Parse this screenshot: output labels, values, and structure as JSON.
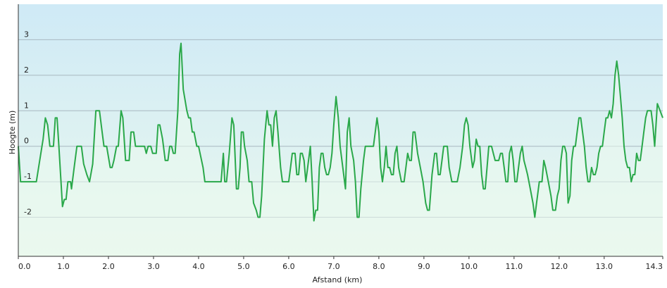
{
  "chart_data": {
    "type": "area",
    "title": "",
    "xlabel": "Afstand  (km)",
    "ylabel": "Hoogte (m)",
    "xlim": [
      0,
      14.3
    ],
    "ylim": [
      -3.1,
      4.0
    ],
    "grid": true,
    "legend": "none",
    "colors": {
      "line": "#2aa84a",
      "plot_top": "#cfeaf6",
      "plot_bottom": "#eaf8ee",
      "grid": "#a8b8c0",
      "axis": "#333333"
    },
    "x_ticks": [
      {
        "value": 0,
        "label": "0.0"
      },
      {
        "value": 1,
        "label": "1.0"
      },
      {
        "value": 2,
        "label": "2.0"
      },
      {
        "value": 3,
        "label": "3.0"
      },
      {
        "value": 4,
        "label": "4.0"
      },
      {
        "value": 5,
        "label": "5.0"
      },
      {
        "value": 6,
        "label": "6.0"
      },
      {
        "value": 7,
        "label": "7.0"
      },
      {
        "value": 8,
        "label": "8.0"
      },
      {
        "value": 9,
        "label": "9.0"
      },
      {
        "value": 10,
        "label": "10.0"
      },
      {
        "value": 11,
        "label": "11.0"
      },
      {
        "value": 12,
        "label": "12.0"
      },
      {
        "value": 13,
        "label": "13.0"
      },
      {
        "value": 14.3,
        "label": "14.3"
      }
    ],
    "y_ticks": [
      {
        "value": 3,
        "label": "3"
      },
      {
        "value": 2,
        "label": "2"
      },
      {
        "value": 1,
        "label": "1"
      },
      {
        "value": 0,
        "label": "0"
      },
      {
        "value": -1,
        "label": "-1"
      },
      {
        "value": -2,
        "label": "-2"
      }
    ],
    "series": [
      {
        "points": [
          [
            0.0,
            0.0
          ],
          [
            0.05,
            -1.0
          ],
          [
            0.4,
            -1.0
          ],
          [
            0.45,
            -0.6
          ],
          [
            0.55,
            0.2
          ],
          [
            0.6,
            0.8
          ],
          [
            0.65,
            0.6
          ],
          [
            0.7,
            0.0
          ],
          [
            0.78,
            0.0
          ],
          [
            0.82,
            0.8
          ],
          [
            0.86,
            0.8
          ],
          [
            0.9,
            0.0
          ],
          [
            0.98,
            -1.7
          ],
          [
            1.02,
            -1.5
          ],
          [
            1.06,
            -1.5
          ],
          [
            1.1,
            -1.0
          ],
          [
            1.16,
            -1.0
          ],
          [
            1.18,
            -1.2
          ],
          [
            1.24,
            -0.6
          ],
          [
            1.3,
            0.0
          ],
          [
            1.4,
            0.0
          ],
          [
            1.45,
            -0.5
          ],
          [
            1.52,
            -0.8
          ],
          [
            1.58,
            -1.0
          ],
          [
            1.65,
            -0.5
          ],
          [
            1.72,
            1.0
          ],
          [
            1.8,
            1.0
          ],
          [
            1.86,
            0.4
          ],
          [
            1.9,
            0.0
          ],
          [
            1.96,
            0.0
          ],
          [
            2.04,
            -0.6
          ],
          [
            2.08,
            -0.6
          ],
          [
            2.12,
            -0.4
          ],
          [
            2.18,
            0.0
          ],
          [
            2.22,
            0.0
          ],
          [
            2.28,
            1.0
          ],
          [
            2.32,
            0.8
          ],
          [
            2.38,
            -0.4
          ],
          [
            2.46,
            -0.4
          ],
          [
            2.5,
            0.4
          ],
          [
            2.56,
            0.4
          ],
          [
            2.6,
            0.0
          ],
          [
            2.7,
            0.0
          ],
          [
            2.8,
            0.0
          ],
          [
            2.84,
            -0.2
          ],
          [
            2.88,
            0.0
          ],
          [
            2.94,
            0.0
          ],
          [
            2.98,
            -0.2
          ],
          [
            3.06,
            -0.2
          ],
          [
            3.1,
            0.6
          ],
          [
            3.14,
            0.6
          ],
          [
            3.2,
            0.2
          ],
          [
            3.26,
            -0.4
          ],
          [
            3.32,
            -0.4
          ],
          [
            3.36,
            0.0
          ],
          [
            3.4,
            0.0
          ],
          [
            3.44,
            -0.2
          ],
          [
            3.48,
            -0.2
          ],
          [
            3.54,
            1.0
          ],
          [
            3.58,
            2.6
          ],
          [
            3.61,
            2.9
          ],
          [
            3.66,
            1.6
          ],
          [
            3.74,
            1.0
          ],
          [
            3.78,
            0.8
          ],
          [
            3.82,
            0.8
          ],
          [
            3.86,
            0.4
          ],
          [
            3.9,
            0.4
          ],
          [
            3.96,
            0.0
          ],
          [
            4.0,
            0.0
          ],
          [
            4.1,
            -0.6
          ],
          [
            4.14,
            -1.0
          ],
          [
            4.3,
            -1.0
          ],
          [
            4.5,
            -1.0
          ],
          [
            4.55,
            -0.2
          ],
          [
            4.58,
            -1.0
          ],
          [
            4.62,
            -1.0
          ],
          [
            4.68,
            -0.2
          ],
          [
            4.74,
            0.8
          ],
          [
            4.78,
            0.6
          ],
          [
            4.84,
            -1.2
          ],
          [
            4.88,
            -1.2
          ],
          [
            4.92,
            -0.6
          ],
          [
            4.95,
            0.4
          ],
          [
            4.99,
            0.4
          ],
          [
            5.02,
            0.0
          ],
          [
            5.08,
            -0.4
          ],
          [
            5.12,
            -1.0
          ],
          [
            5.18,
            -1.0
          ],
          [
            5.22,
            -1.6
          ],
          [
            5.28,
            -1.8
          ],
          [
            5.32,
            -2.0
          ],
          [
            5.36,
            -2.0
          ],
          [
            5.4,
            -1.4
          ],
          [
            5.46,
            0.2
          ],
          [
            5.52,
            1.0
          ],
          [
            5.56,
            0.6
          ],
          [
            5.6,
            0.6
          ],
          [
            5.64,
            0.0
          ],
          [
            5.68,
            0.8
          ],
          [
            5.72,
            1.0
          ],
          [
            5.76,
            0.4
          ],
          [
            5.82,
            -0.6
          ],
          [
            5.86,
            -1.0
          ],
          [
            6.0,
            -1.0
          ],
          [
            6.04,
            -0.6
          ],
          [
            6.08,
            -0.2
          ],
          [
            6.14,
            -0.2
          ],
          [
            6.18,
            -0.8
          ],
          [
            6.22,
            -0.8
          ],
          [
            6.26,
            -0.2
          ],
          [
            6.3,
            -0.2
          ],
          [
            6.34,
            -0.4
          ],
          [
            6.38,
            -1.0
          ],
          [
            6.42,
            -0.6
          ],
          [
            6.48,
            0.0
          ],
          [
            6.52,
            -1.0
          ],
          [
            6.56,
            -2.1
          ],
          [
            6.6,
            -1.8
          ],
          [
            6.64,
            -1.8
          ],
          [
            6.68,
            -0.6
          ],
          [
            6.72,
            -0.2
          ],
          [
            6.76,
            -0.2
          ],
          [
            6.8,
            -0.6
          ],
          [
            6.84,
            -0.8
          ],
          [
            6.88,
            -0.8
          ],
          [
            6.92,
            -0.6
          ],
          [
            6.96,
            -0.2
          ],
          [
            7.0,
            0.6
          ],
          [
            7.05,
            1.4
          ],
          [
            7.1,
            0.8
          ],
          [
            7.14,
            0.0
          ],
          [
            7.2,
            -0.6
          ],
          [
            7.26,
            -1.2
          ],
          [
            7.3,
            0.4
          ],
          [
            7.34,
            0.8
          ],
          [
            7.38,
            0.0
          ],
          [
            7.44,
            -0.4
          ],
          [
            7.48,
            -1.0
          ],
          [
            7.52,
            -2.0
          ],
          [
            7.56,
            -2.0
          ],
          [
            7.6,
            -1.2
          ],
          [
            7.66,
            -0.4
          ],
          [
            7.7,
            0.0
          ],
          [
            7.84,
            0.0
          ],
          [
            7.88,
            0.0
          ],
          [
            7.92,
            0.4
          ],
          [
            7.96,
            0.8
          ],
          [
            8.0,
            0.4
          ],
          [
            8.04,
            -0.6
          ],
          [
            8.08,
            -1.0
          ],
          [
            8.12,
            -0.6
          ],
          [
            8.16,
            0.0
          ],
          [
            8.2,
            -0.6
          ],
          [
            8.24,
            -0.6
          ],
          [
            8.28,
            -0.8
          ],
          [
            8.32,
            -0.8
          ],
          [
            8.36,
            -0.2
          ],
          [
            8.4,
            0.0
          ],
          [
            8.44,
            -0.6
          ],
          [
            8.5,
            -1.0
          ],
          [
            8.56,
            -1.0
          ],
          [
            8.6,
            -0.6
          ],
          [
            8.64,
            -0.2
          ],
          [
            8.68,
            -0.4
          ],
          [
            8.72,
            -0.4
          ],
          [
            8.76,
            0.4
          ],
          [
            8.8,
            0.4
          ],
          [
            8.86,
            -0.2
          ],
          [
            8.92,
            -0.6
          ],
          [
            8.98,
            -1.0
          ],
          [
            9.04,
            -1.6
          ],
          [
            9.08,
            -1.8
          ],
          [
            9.12,
            -1.8
          ],
          [
            9.18,
            -0.8
          ],
          [
            9.24,
            -0.2
          ],
          [
            9.28,
            -0.2
          ],
          [
            9.32,
            -0.8
          ],
          [
            9.36,
            -0.8
          ],
          [
            9.4,
            -0.4
          ],
          [
            9.44,
            0.0
          ],
          [
            9.48,
            0.0
          ],
          [
            9.52,
            0.0
          ],
          [
            9.56,
            -0.6
          ],
          [
            9.62,
            -1.0
          ],
          [
            9.74,
            -1.0
          ],
          [
            9.8,
            -0.6
          ],
          [
            9.86,
            0.0
          ],
          [
            9.9,
            0.6
          ],
          [
            9.94,
            0.8
          ],
          [
            9.98,
            0.6
          ],
          [
            10.02,
            0.0
          ],
          [
            10.08,
            -0.6
          ],
          [
            10.12,
            -0.4
          ],
          [
            10.16,
            0.2
          ],
          [
            10.2,
            0.0
          ],
          [
            10.24,
            0.0
          ],
          [
            10.28,
            -0.8
          ],
          [
            10.32,
            -1.2
          ],
          [
            10.36,
            -1.2
          ],
          [
            10.4,
            -0.6
          ],
          [
            10.44,
            0.0
          ],
          [
            10.5,
            0.0
          ],
          [
            10.54,
            -0.2
          ],
          [
            10.58,
            -0.4
          ],
          [
            10.66,
            -0.4
          ],
          [
            10.7,
            -0.2
          ],
          [
            10.74,
            -0.2
          ],
          [
            10.78,
            -0.6
          ],
          [
            10.82,
            -1.0
          ],
          [
            10.86,
            -1.0
          ],
          [
            10.9,
            -0.2
          ],
          [
            10.94,
            0.0
          ],
          [
            10.98,
            -0.4
          ],
          [
            11.02,
            -1.0
          ],
          [
            11.06,
            -1.0
          ],
          [
            11.1,
            -0.6
          ],
          [
            11.14,
            -0.2
          ],
          [
            11.18,
            0.0
          ],
          [
            11.22,
            -0.4
          ],
          [
            11.26,
            -0.6
          ],
          [
            11.3,
            -0.8
          ],
          [
            11.36,
            -1.2
          ],
          [
            11.42,
            -1.6
          ],
          [
            11.46,
            -2.0
          ],
          [
            11.5,
            -1.6
          ],
          [
            11.56,
            -1.0
          ],
          [
            11.62,
            -1.0
          ],
          [
            11.66,
            -0.4
          ],
          [
            11.7,
            -0.6
          ],
          [
            11.76,
            -1.0
          ],
          [
            11.82,
            -1.4
          ],
          [
            11.86,
            -1.8
          ],
          [
            11.92,
            -1.8
          ],
          [
            11.96,
            -1.4
          ],
          [
            12.0,
            -1.2
          ],
          [
            12.04,
            -0.4
          ],
          [
            12.08,
            0.0
          ],
          [
            12.12,
            0.0
          ],
          [
            12.16,
            -0.2
          ],
          [
            12.2,
            -1.6
          ],
          [
            12.24,
            -1.4
          ],
          [
            12.28,
            -0.4
          ],
          [
            12.32,
            0.0
          ],
          [
            12.36,
            0.0
          ],
          [
            12.4,
            0.4
          ],
          [
            12.44,
            0.8
          ],
          [
            12.48,
            0.8
          ],
          [
            12.52,
            0.4
          ],
          [
            12.56,
            0.0
          ],
          [
            12.6,
            -0.6
          ],
          [
            12.64,
            -1.0
          ],
          [
            12.68,
            -1.0
          ],
          [
            12.72,
            -0.6
          ],
          [
            12.76,
            -0.8
          ],
          [
            12.8,
            -0.8
          ],
          [
            12.84,
            -0.6
          ],
          [
            12.88,
            -0.2
          ],
          [
            12.92,
            0.0
          ],
          [
            12.96,
            0.0
          ],
          [
            13.0,
            0.4
          ],
          [
            13.04,
            0.8
          ],
          [
            13.08,
            0.8
          ],
          [
            13.12,
            1.0
          ],
          [
            13.16,
            0.8
          ],
          [
            13.2,
            1.2
          ],
          [
            13.24,
            2.0
          ],
          [
            13.28,
            2.4
          ],
          [
            13.32,
            2.0
          ],
          [
            13.36,
            1.4
          ],
          [
            13.4,
            0.8
          ],
          [
            13.44,
            0.0
          ],
          [
            13.48,
            -0.4
          ],
          [
            13.52,
            -0.6
          ],
          [
            13.56,
            -0.6
          ],
          [
            13.6,
            -1.0
          ],
          [
            13.64,
            -0.8
          ],
          [
            13.68,
            -0.8
          ],
          [
            13.72,
            -0.2
          ],
          [
            13.76,
            -0.4
          ],
          [
            13.8,
            -0.4
          ],
          [
            13.84,
            0.0
          ],
          [
            13.88,
            0.4
          ],
          [
            13.92,
            0.8
          ],
          [
            13.96,
            1.0
          ],
          [
            14.0,
            1.0
          ],
          [
            14.04,
            1.0
          ],
          [
            14.08,
            0.6
          ],
          [
            14.12,
            0.0
          ],
          [
            14.18,
            1.2
          ],
          [
            14.24,
            1.0
          ],
          [
            14.3,
            0.8
          ]
        ]
      }
    ]
  }
}
